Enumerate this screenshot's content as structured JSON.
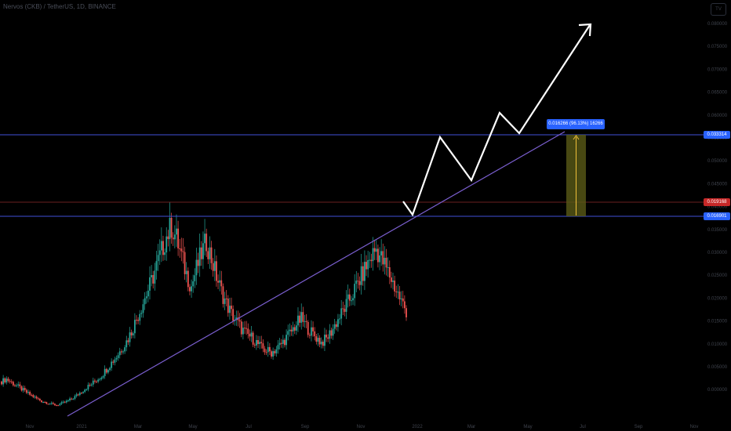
{
  "header": {
    "symbol_line": "Nervos (CKB) / TetherUS, 1D, BINANCE"
  },
  "logo_text": "TV",
  "colors": {
    "up": "#26a69a",
    "down": "#ef5350",
    "wick": "#26a69a",
    "resistance": "#3f51d8",
    "support": "#3f51d8",
    "mid": "#8e2a2a",
    "trend": "#7b5fd0",
    "projection": "#ffffff",
    "measure_fill": "#5a5a16",
    "measure_line": "#f0c03a"
  },
  "chart_data": {
    "type": "candlestick",
    "x_labels": [
      "Nov",
      "2021",
      "Mar",
      "May",
      "Jul",
      "Sep",
      "Nov",
      "2022",
      "Mar",
      "May",
      "Jul",
      "Sep",
      "Nov"
    ],
    "y_ticks": [
      "0.080000",
      "0.075000",
      "0.070000",
      "0.065000",
      "0.060000",
      "0.055000",
      "0.050000",
      "0.045000",
      "0.040000",
      "0.035000",
      "0.030000",
      "0.025000",
      "0.020000",
      "0.015000",
      "0.010000",
      "0.005000",
      "0.000000"
    ],
    "price_labels": {
      "resistance": "0.033314",
      "current": "0.019168",
      "support": "0.016901"
    },
    "measure_label": "0.016266 (96.13%) 16266",
    "levels": {
      "resistance": 0.033314,
      "current": 0.019168,
      "support": 0.016901
    },
    "candles_close": [
      0.008,
      0.0085,
      0.0078,
      0.0072,
      0.0065,
      0.0058,
      0.0052,
      0.0046,
      0.0041,
      0.0038,
      0.0035,
      0.0033,
      0.0036,
      0.004,
      0.0045,
      0.0052,
      0.006,
      0.0068,
      0.0075,
      0.0083,
      0.0092,
      0.0105,
      0.0118,
      0.013,
      0.0145,
      0.016,
      0.018,
      0.0205,
      0.023,
      0.0255,
      0.028,
      0.031,
      0.034,
      0.037,
      0.039,
      0.0365,
      0.033,
      0.0295,
      0.027,
      0.0305,
      0.0335,
      0.036,
      0.0325,
      0.029,
      0.026,
      0.0235,
      0.0215,
      0.02,
      0.0185,
      0.0175,
      0.0168,
      0.0158,
      0.0147,
      0.0142,
      0.0138,
      0.0145,
      0.0155,
      0.0168,
      0.018,
      0.0195,
      0.0205,
      0.019,
      0.0178,
      0.0168,
      0.0158,
      0.0165,
      0.018,
      0.0198,
      0.0215,
      0.0232,
      0.025,
      0.027,
      0.029,
      0.031,
      0.033,
      0.0345,
      0.0325,
      0.0305,
      0.0285,
      0.0262,
      0.024,
      0.022
    ]
  }
}
